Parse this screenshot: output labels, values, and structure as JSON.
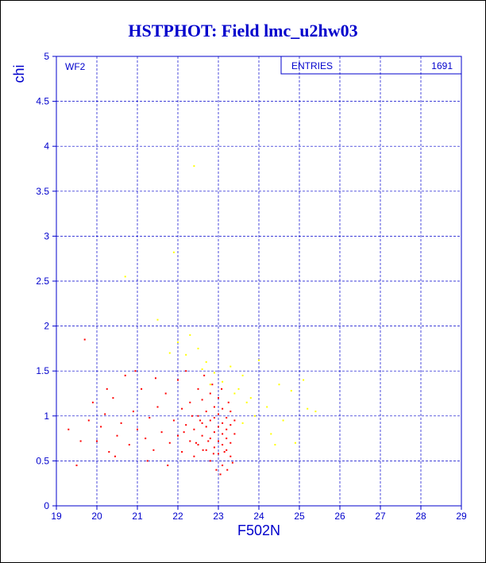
{
  "chart_data": {
    "type": "scatter",
    "title": "HSTPHOT: Field lmc_u2hw03",
    "xlabel": "F502N",
    "ylabel": "chi",
    "annotation": "WF2",
    "stats_label": "ENTRIES",
    "stats_value": "1691",
    "xlim": [
      19,
      29
    ],
    "ylim": [
      0,
      5
    ],
    "xticks": [
      19,
      20,
      21,
      22,
      23,
      24,
      25,
      26,
      27,
      28,
      29
    ],
    "yticks": [
      0,
      0.5,
      1,
      1.5,
      2,
      2.5,
      3,
      3.5,
      4,
      4.5,
      5
    ],
    "grid": true,
    "series": [
      {
        "color": "#ff0000",
        "points": [
          [
            19.3,
            0.85
          ],
          [
            19.5,
            0.45
          ],
          [
            19.7,
            1.85
          ],
          [
            19.8,
            0.95
          ],
          [
            19.9,
            1.15
          ],
          [
            20.0,
            0.72
          ],
          [
            20.1,
            0.88
          ],
          [
            20.2,
            1.02
          ],
          [
            20.3,
            0.6
          ],
          [
            20.4,
            1.2
          ],
          [
            20.5,
            0.78
          ],
          [
            20.6,
            0.92
          ],
          [
            20.7,
            1.45
          ],
          [
            20.8,
            0.68
          ],
          [
            20.9,
            1.05
          ],
          [
            21.0,
            0.85
          ],
          [
            21.1,
            1.3
          ],
          [
            21.2,
            0.75
          ],
          [
            21.3,
            0.98
          ],
          [
            21.4,
            0.62
          ],
          [
            21.5,
            1.1
          ],
          [
            21.6,
            0.82
          ],
          [
            21.7,
            1.25
          ],
          [
            21.8,
            0.7
          ],
          [
            21.9,
            0.95
          ],
          [
            22.0,
            1.4
          ],
          [
            22.0,
            0.78
          ],
          [
            22.1,
            1.08
          ],
          [
            22.1,
            0.6
          ],
          [
            22.2,
            0.9
          ],
          [
            22.2,
            1.5
          ],
          [
            22.3,
            0.72
          ],
          [
            22.3,
            1.15
          ],
          [
            22.4,
            0.85
          ],
          [
            22.4,
            0.55
          ],
          [
            22.5,
            1.0
          ],
          [
            22.5,
            1.3
          ],
          [
            22.5,
            0.68
          ],
          [
            22.6,
            0.92
          ],
          [
            22.6,
            0.78
          ],
          [
            22.6,
            1.18
          ],
          [
            22.7,
            0.62
          ],
          [
            22.7,
            1.05
          ],
          [
            22.7,
            0.88
          ],
          [
            22.8,
            0.75
          ],
          [
            22.8,
            1.25
          ],
          [
            22.8,
            0.95
          ],
          [
            22.8,
            0.5
          ],
          [
            22.9,
            0.82
          ],
          [
            22.9,
            1.1
          ],
          [
            22.9,
            0.65
          ],
          [
            22.9,
            0.98
          ],
          [
            23.0,
            0.72
          ],
          [
            23.0,
            0.88
          ],
          [
            23.0,
            1.02
          ],
          [
            23.0,
            0.58
          ],
          [
            23.0,
            1.2
          ],
          [
            23.1,
            0.8
          ],
          [
            23.1,
            0.92
          ],
          [
            23.1,
            0.68
          ],
          [
            23.1,
            1.08
          ],
          [
            23.1,
            0.45
          ],
          [
            23.2,
            0.85
          ],
          [
            23.2,
            0.75
          ],
          [
            23.2,
            0.98
          ],
          [
            23.2,
            0.62
          ],
          [
            23.3,
            0.9
          ],
          [
            23.3,
            0.7
          ],
          [
            23.3,
            1.05
          ],
          [
            23.3,
            0.55
          ],
          [
            23.4,
            0.8
          ],
          [
            23.4,
            0.95
          ],
          [
            22.95,
            0.4
          ],
          [
            23.05,
            0.35
          ],
          [
            22.85,
            1.35
          ],
          [
            22.65,
            1.45
          ],
          [
            22.55,
            0.95
          ],
          [
            22.75,
            0.72
          ],
          [
            23.15,
            0.6
          ],
          [
            23.25,
            1.15
          ],
          [
            19.6,
            0.72
          ],
          [
            20.25,
            1.3
          ],
          [
            20.45,
            0.55
          ],
          [
            21.25,
            0.5
          ],
          [
            21.75,
            0.45
          ],
          [
            21.45,
            1.42
          ],
          [
            20.95,
            1.5
          ],
          [
            22.35,
            1.0
          ],
          [
            22.45,
            0.7
          ],
          [
            22.15,
            0.82
          ],
          [
            23.35,
            0.48
          ],
          [
            23.22,
            0.4
          ],
          [
            22.88,
            0.58
          ],
          [
            22.62,
            0.62
          ],
          [
            23.08,
            1.3
          ]
        ]
      },
      {
        "color": "#ffff00",
        "points": [
          [
            22.4,
            3.78
          ],
          [
            21.9,
            2.82
          ],
          [
            20.7,
            2.55
          ],
          [
            21.5,
            2.07
          ],
          [
            22.0,
            1.82
          ],
          [
            22.3,
            1.9
          ],
          [
            22.5,
            1.75
          ],
          [
            22.7,
            1.6
          ],
          [
            22.9,
            1.48
          ],
          [
            23.1,
            1.38
          ],
          [
            23.3,
            1.55
          ],
          [
            23.5,
            1.3
          ],
          [
            23.6,
            1.45
          ],
          [
            23.8,
            1.2
          ],
          [
            24.0,
            1.62
          ],
          [
            24.2,
            1.1
          ],
          [
            24.5,
            1.35
          ],
          [
            24.8,
            1.28
          ],
          [
            25.1,
            1.4
          ],
          [
            25.4,
            1.05
          ],
          [
            24.6,
            0.95
          ],
          [
            24.3,
            0.8
          ],
          [
            24.9,
            0.7
          ],
          [
            23.9,
            1.0
          ],
          [
            23.7,
            1.15
          ],
          [
            22.6,
            1.52
          ],
          [
            22.2,
            1.68
          ],
          [
            21.8,
            1.7
          ],
          [
            22.8,
            1.35
          ],
          [
            23.4,
            1.25
          ],
          [
            24.4,
            0.68
          ],
          [
            25.2,
            1.08
          ],
          [
            23.6,
            0.92
          ]
        ]
      }
    ]
  }
}
